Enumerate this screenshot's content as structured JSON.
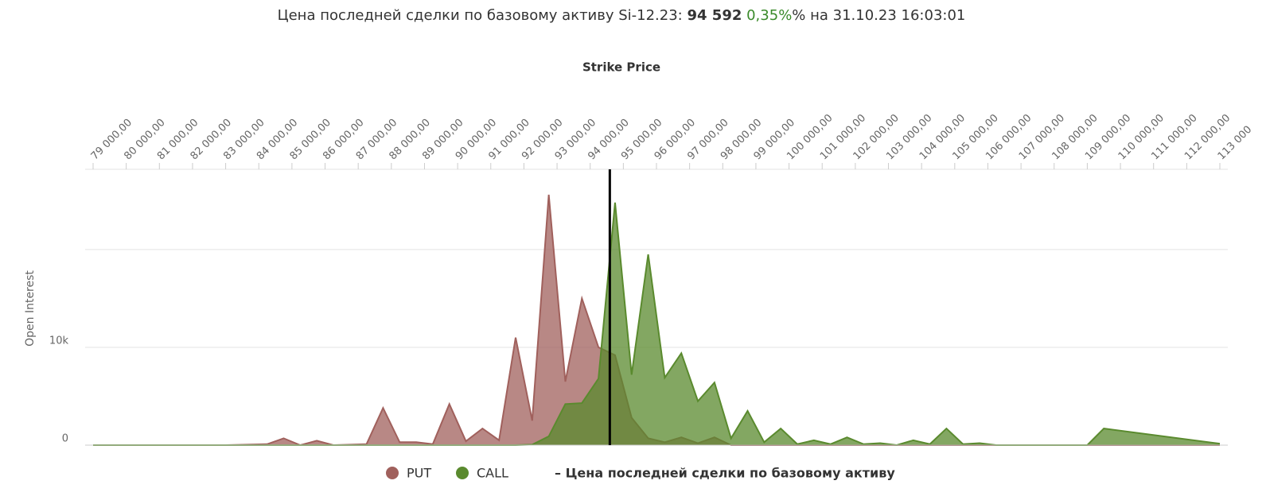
{
  "chart_data": {
    "type": "area",
    "title_parts": [
      "Цена последней сделки по базовому активу Si-12.23:",
      "0,35%",
      "% на 31.10.23 16:03:01"
    ],
    "price": {
      "value": 94592,
      "label": "94 592"
    },
    "xlabel": "Strike Price",
    "ylabel": "Open Interest",
    "price_legend": "– Цена последней сделки по базовому активу",
    "x": [
      79000,
      83000,
      84250,
      84750,
      85250,
      85750,
      86250,
      87250,
      87750,
      88250,
      88750,
      89250,
      89750,
      90250,
      90750,
      91250,
      91750,
      92250,
      92750,
      93250,
      93750,
      94250,
      94750,
      95250,
      95750,
      96250,
      96750,
      97250,
      97750,
      98250,
      98750,
      99250,
      99750,
      100250,
      100750,
      101250,
      101750,
      102250,
      102750,
      103250,
      103750,
      104250,
      104750,
      105250,
      105750,
      106250,
      109000,
      109500,
      113000
    ],
    "series": [
      {
        "name": "PUT",
        "color": "#a0605c",
        "values": [
          0,
          0,
          100,
          700,
          0,
          450,
          0,
          100,
          3800,
          300,
          300,
          100,
          4200,
          400,
          1700,
          500,
          11000,
          2500,
          25600,
          6500,
          15000,
          10000,
          9200,
          2800,
          700,
          300,
          800,
          200,
          800,
          0,
          0,
          0,
          0,
          0,
          0,
          0,
          0,
          0,
          0,
          0,
          0,
          0,
          0,
          0,
          0,
          0,
          0,
          0,
          0
        ]
      },
      {
        "name": "CALL",
        "color": "#5a8a2e",
        "values": [
          0,
          0,
          0,
          0,
          0,
          0,
          0,
          0,
          0,
          0,
          0,
          0,
          0,
          0,
          0,
          0,
          0,
          50,
          900,
          4200,
          4300,
          6800,
          24800,
          7200,
          19500,
          6900,
          9400,
          4500,
          6400,
          700,
          3500,
          300,
          1700,
          100,
          500,
          100,
          800,
          100,
          200,
          0,
          500,
          100,
          1700,
          100,
          200,
          0,
          0,
          1700,
          150
        ]
      }
    ],
    "xlim": [
      79000,
      113000
    ],
    "xticks": [
      {
        "value": 79000,
        "label": "79 000,00"
      },
      {
        "value": 80000,
        "label": "80 000,00"
      },
      {
        "value": 81000,
        "label": "81 000,00"
      },
      {
        "value": 82000,
        "label": "82 000,00"
      },
      {
        "value": 83000,
        "label": "83 000,00"
      },
      {
        "value": 84000,
        "label": "84 000,00"
      },
      {
        "value": 85000,
        "label": "85 000,00"
      },
      {
        "value": 86000,
        "label": "86 000,00"
      },
      {
        "value": 87000,
        "label": "87 000,00"
      },
      {
        "value": 88000,
        "label": "88 000,00"
      },
      {
        "value": 89000,
        "label": "89 000,00"
      },
      {
        "value": 90000,
        "label": "90 000,00"
      },
      {
        "value": 91000,
        "label": "91 000,00"
      },
      {
        "value": 92000,
        "label": "92 000,00"
      },
      {
        "value": 93000,
        "label": "93 000,00"
      },
      {
        "value": 94000,
        "label": "94 000,00"
      },
      {
        "value": 95000,
        "label": "95 000,00"
      },
      {
        "value": 96000,
        "label": "96 000,00"
      },
      {
        "value": 97000,
        "label": "97 000,00"
      },
      {
        "value": 98000,
        "label": "98 000,00"
      },
      {
        "value": 99000,
        "label": "99 000,00"
      },
      {
        "value": 100000,
        "label": "100 000,00"
      },
      {
        "value": 101000,
        "label": "101 000,00"
      },
      {
        "value": 102000,
        "label": "102 000,00"
      },
      {
        "value": 103000,
        "label": "103 000,00"
      },
      {
        "value": 104000,
        "label": "104 000,00"
      },
      {
        "value": 105000,
        "label": "105 000,00"
      },
      {
        "value": 106000,
        "label": "106 000,00"
      },
      {
        "value": 107000,
        "label": "107 000,00"
      },
      {
        "value": 108000,
        "label": "108 000,00"
      },
      {
        "value": 109000,
        "label": "109 000,00"
      },
      {
        "value": 110000,
        "label": "110 000,00"
      },
      {
        "value": 111000,
        "label": "111 000,00"
      },
      {
        "value": 112000,
        "label": "112 000,00"
      },
      {
        "value": 113000,
        "label": "113 000"
      }
    ],
    "ylim": [
      0,
      28200
    ],
    "yticks": [
      0,
      {
        "value": 10000,
        "label": "10k"
      },
      {
        "value": 20000,
        "label": null
      }
    ],
    "grid": true
  }
}
